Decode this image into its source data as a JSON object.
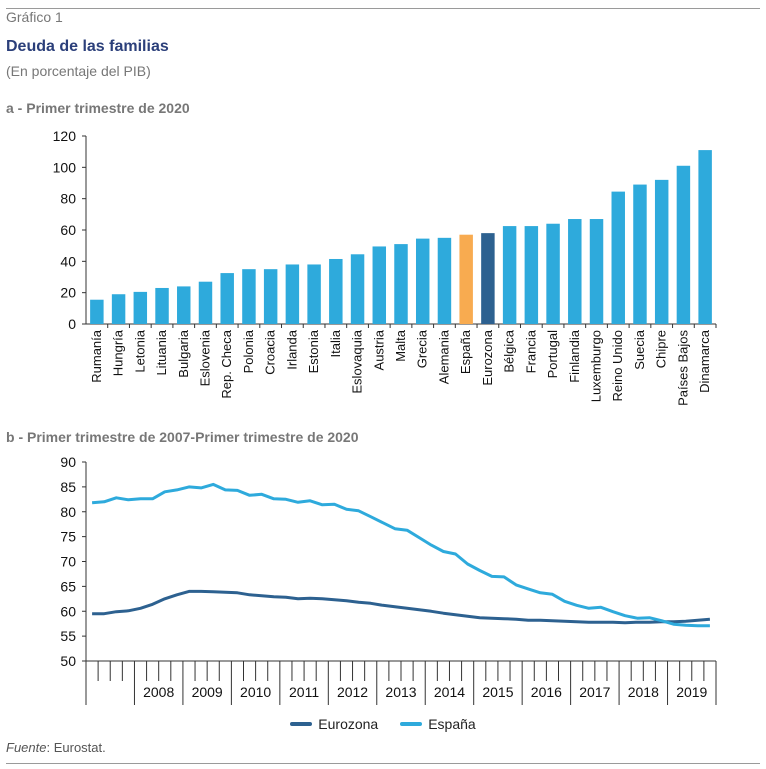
{
  "header": {
    "figure_label": "Gráfico 1",
    "title": "Deuda de las familias",
    "subtitle": "(En porcentaje del PIB)"
  },
  "source": {
    "label": "Fuente",
    "text": ": Eurostat."
  },
  "colors": {
    "bar_default": "#2eaadc",
    "bar_spain": "#f8ab50",
    "bar_eurozone": "#2d6190",
    "line_eurozone": "#2d6190",
    "line_spain": "#2eaadc",
    "title": "#2b3f7a"
  },
  "chart_data": [
    {
      "type": "bar",
      "title": "a - Primer trimestre de 2020",
      "categories": [
        "Rumanía",
        "Hungría",
        "Letonia",
        "Lituania",
        "Bulgaria",
        "Eslovenia",
        "Rep. Checa",
        "Polonia",
        "Croacia",
        "Irlanda",
        "Estonia",
        "Italia",
        "Eslovaquia",
        "Austria",
        "Malta",
        "Grecia",
        "Alemania",
        "España",
        "Eurozona",
        "Bélgica",
        "Francia",
        "Portugal",
        "Finlandia",
        "Luxemburgo",
        "Reino Unido",
        "Suecia",
        "Chipre",
        "Países Bajos",
        "Dinamarca"
      ],
      "values": [
        15.5,
        19,
        20.5,
        23,
        24,
        27,
        32.5,
        35,
        35,
        38,
        38,
        41.5,
        44.5,
        49.5,
        51,
        54.5,
        55,
        57,
        58,
        62.5,
        62.5,
        64,
        67,
        67,
        84.5,
        89,
        92,
        101,
        111
      ],
      "highlight": {
        "España": "bar_spain",
        "Eurozona": "bar_eurozone"
      },
      "ylim": [
        0,
        120
      ],
      "yticks": [
        0,
        20,
        40,
        60,
        80,
        100,
        120
      ],
      "grid": false
    },
    {
      "type": "line",
      "title": "b - Primer trimestre de 2007-Primer trimestre de 2020",
      "x_labels": [
        "2008",
        "2009",
        "2010",
        "2011",
        "2012",
        "2013",
        "2014",
        "2015",
        "2016",
        "2017",
        "2018",
        "2019"
      ],
      "quarters_start": "2007-Q1",
      "ylim": [
        50,
        90
      ],
      "yticks": [
        50,
        55,
        60,
        65,
        70,
        75,
        80,
        85,
        90
      ],
      "grid": false,
      "legend_position": "bottom",
      "series": [
        {
          "name": "Eurozona",
          "color_key": "line_eurozone",
          "values": [
            59.5,
            59.5,
            59.9,
            60.1,
            60.6,
            61.4,
            62.5,
            63.3,
            64.0,
            64.0,
            63.9,
            63.8,
            63.7,
            63.3,
            63.1,
            62.9,
            62.8,
            62.5,
            62.6,
            62.5,
            62.3,
            62.1,
            61.8,
            61.6,
            61.2,
            60.9,
            60.6,
            60.3,
            60.0,
            59.6,
            59.3,
            59.0,
            58.7,
            58.6,
            58.5,
            58.4,
            58.2,
            58.2,
            58.1,
            58.0,
            57.9,
            57.8,
            57.8,
            57.8,
            57.7,
            57.8,
            57.8,
            57.9,
            57.9,
            58.0,
            58.2,
            58.4
          ]
        },
        {
          "name": "España",
          "color_key": "line_spain",
          "values": [
            81.8,
            82.0,
            82.8,
            82.4,
            82.6,
            82.6,
            84.0,
            84.4,
            85.0,
            84.8,
            85.5,
            84.4,
            84.3,
            83.3,
            83.5,
            82.6,
            82.5,
            81.9,
            82.2,
            81.4,
            81.5,
            80.5,
            80.2,
            79.0,
            77.8,
            76.6,
            76.3,
            74.8,
            73.3,
            72.0,
            71.5,
            69.5,
            68.2,
            67.0,
            66.9,
            65.3,
            64.5,
            63.7,
            63.4,
            62.0,
            61.2,
            60.6,
            60.8,
            59.9,
            59.1,
            58.6,
            58.7,
            58.1,
            57.4,
            57.2,
            57.1,
            57.1
          ]
        }
      ]
    }
  ]
}
